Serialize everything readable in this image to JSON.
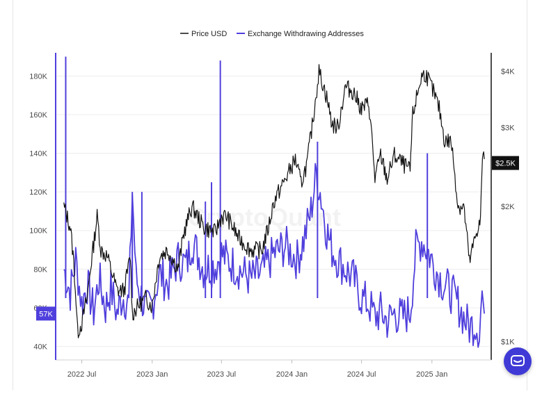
{
  "chart_data": {
    "type": "line",
    "legend": {
      "items": [
        {
          "label": "Price USD",
          "color": "#111111"
        },
        {
          "label": "Exchange Withdrawing Addresses",
          "color": "#4f3fdc"
        }
      ],
      "placement": "top-center"
    },
    "watermark": "CryptoQuant",
    "x_ticks": [
      "2022 Jul",
      "2023 Jan",
      "2023 Jul",
      "2024 Jan",
      "2024 Jul",
      "2025 Jan"
    ],
    "x_range": [
      "2022-05",
      "2025-05"
    ],
    "y_left": {
      "ticks": [
        "40K",
        "60K",
        "80K",
        "100K",
        "120K",
        "140K",
        "160K",
        "180K"
      ],
      "tick_values": [
        40000,
        60000,
        80000,
        100000,
        120000,
        140000,
        160000,
        180000
      ],
      "range": [
        33000,
        192000
      ],
      "current_label": "57K",
      "current_value": 57000
    },
    "y_right": {
      "scale": "log",
      "ticks": [
        "$1K",
        "$2K",
        "$3K",
        "$4K"
      ],
      "tick_values": [
        1000,
        2000,
        3000,
        4000
      ],
      "range": [
        910,
        4400
      ],
      "current_label": "$2.5K",
      "current_value": 2500
    },
    "grid": "horizontal",
    "series": [
      {
        "name": "Price USD",
        "axis": "right",
        "color": "#111111",
        "points": [
          [
            "2022-05-15",
            2000
          ],
          [
            "2022-06-01",
            1800
          ],
          [
            "2022-06-10",
            1500
          ],
          [
            "2022-06-20",
            1050
          ],
          [
            "2022-07-01",
            1100
          ],
          [
            "2022-07-15",
            1250
          ],
          [
            "2022-08-01",
            1650
          ],
          [
            "2022-08-10",
            1900
          ],
          [
            "2022-08-20",
            1600
          ],
          [
            "2022-09-05",
            1550
          ],
          [
            "2022-09-15",
            1450
          ],
          [
            "2022-10-01",
            1300
          ],
          [
            "2022-10-20",
            1300
          ],
          [
            "2022-11-05",
            1550
          ],
          [
            "2022-11-10",
            1150
          ],
          [
            "2022-11-25",
            1200
          ],
          [
            "2022-12-15",
            1250
          ],
          [
            "2023-01-01",
            1200
          ],
          [
            "2023-01-20",
            1550
          ],
          [
            "2023-02-10",
            1600
          ],
          [
            "2023-03-10",
            1450
          ],
          [
            "2023-03-25",
            1750
          ],
          [
            "2023-04-15",
            2000
          ],
          [
            "2023-05-15",
            1800
          ],
          [
            "2023-06-15",
            1750
          ],
          [
            "2023-07-01",
            1900
          ],
          [
            "2023-07-15",
            1900
          ],
          [
            "2023-08-15",
            1700
          ],
          [
            "2023-09-15",
            1600
          ],
          [
            "2023-10-15",
            1600
          ],
          [
            "2023-11-01",
            1800
          ],
          [
            "2023-11-15",
            2050
          ],
          [
            "2023-12-15",
            2300
          ],
          [
            "2024-01-10",
            2550
          ],
          [
            "2024-01-25",
            2250
          ],
          [
            "2024-02-10",
            2500
          ],
          [
            "2024-02-25",
            3100
          ],
          [
            "2024-03-12",
            4000
          ],
          [
            "2024-04-01",
            3500
          ],
          [
            "2024-04-15",
            3050
          ],
          [
            "2024-05-01",
            3000
          ],
          [
            "2024-05-20",
            3700
          ],
          [
            "2024-06-10",
            3600
          ],
          [
            "2024-07-01",
            3300
          ],
          [
            "2024-07-20",
            3400
          ],
          [
            "2024-08-05",
            2300
          ],
          [
            "2024-08-20",
            2600
          ],
          [
            "2024-09-06",
            2300
          ],
          [
            "2024-09-25",
            2600
          ],
          [
            "2024-10-15",
            2500
          ],
          [
            "2024-11-05",
            2400
          ],
          [
            "2024-11-12",
            3200
          ],
          [
            "2024-12-05",
            3900
          ],
          [
            "2024-12-16",
            3950
          ],
          [
            "2025-01-05",
            3600
          ],
          [
            "2025-01-20",
            3300
          ],
          [
            "2025-02-03",
            2800
          ],
          [
            "2025-02-20",
            2800
          ],
          [
            "2025-03-10",
            2000
          ],
          [
            "2025-03-25",
            2000
          ],
          [
            "2025-04-09",
            1500
          ],
          [
            "2025-04-20",
            1650
          ],
          [
            "2025-05-01",
            1800
          ],
          [
            "2025-05-08",
            1850
          ],
          [
            "2025-05-13",
            2600
          ],
          [
            "2025-05-18",
            2550
          ]
        ]
      },
      {
        "name": "Exchange Withdrawing Addresses",
        "axis": "left",
        "color": "#4f3fdc",
        "points": [
          [
            "2022-05-15",
            80000
          ],
          [
            "2022-06-01",
            68000
          ],
          [
            "2022-06-15",
            85000
          ],
          [
            "2022-07-01",
            62000
          ],
          [
            "2022-07-15",
            72000
          ],
          [
            "2022-08-01",
            58000
          ],
          [
            "2022-08-15",
            75000
          ],
          [
            "2022-09-01",
            60000
          ],
          [
            "2022-09-15",
            70000
          ],
          [
            "2022-10-01",
            57000
          ],
          [
            "2022-10-15",
            66000
          ],
          [
            "2022-11-01",
            62000
          ],
          [
            "2022-11-10",
            120000
          ],
          [
            "2022-11-20",
            75000
          ],
          [
            "2022-12-01",
            68000
          ],
          [
            "2022-12-15",
            58000
          ],
          [
            "2023-01-01",
            62000
          ],
          [
            "2023-01-20",
            78000
          ],
          [
            "2023-02-10",
            72000
          ],
          [
            "2023-03-10",
            85000
          ],
          [
            "2023-04-01",
            82000
          ],
          [
            "2023-04-15",
            95000
          ],
          [
            "2023-05-15",
            80000
          ],
          [
            "2023-06-15",
            82000
          ],
          [
            "2023-07-01",
            88000
          ],
          [
            "2023-07-15",
            85000
          ],
          [
            "2023-08-15",
            80000
          ],
          [
            "2023-09-15",
            75000
          ],
          [
            "2023-10-15",
            78000
          ],
          [
            "2023-11-15",
            88000
          ],
          [
            "2023-12-15",
            92000
          ],
          [
            "2024-01-15",
            85000
          ],
          [
            "2024-02-01",
            95000
          ],
          [
            "2024-02-20",
            110000
          ],
          [
            "2024-03-05",
            130000
          ],
          [
            "2024-03-15",
            120000
          ],
          [
            "2024-04-01",
            100000
          ],
          [
            "2024-04-15",
            90000
          ],
          [
            "2024-05-01",
            85000
          ],
          [
            "2024-05-20",
            80000
          ],
          [
            "2024-06-10",
            75000
          ],
          [
            "2024-07-01",
            65000
          ],
          [
            "2024-07-20",
            62000
          ],
          [
            "2024-08-05",
            55000
          ],
          [
            "2024-08-20",
            58000
          ],
          [
            "2024-09-06",
            53000
          ],
          [
            "2024-09-25",
            57000
          ],
          [
            "2024-10-15",
            55000
          ],
          [
            "2024-11-05",
            58000
          ],
          [
            "2024-11-20",
            90000
          ],
          [
            "2024-12-05",
            95000
          ],
          [
            "2024-12-20",
            90000
          ],
          [
            "2025-01-10",
            80000
          ],
          [
            "2025-02-01",
            72000
          ],
          [
            "2025-02-20",
            68000
          ],
          [
            "2025-03-10",
            62000
          ],
          [
            "2025-03-25",
            55000
          ],
          [
            "2025-04-09",
            50000
          ],
          [
            "2025-04-25",
            52000
          ],
          [
            "2025-05-05",
            48000
          ],
          [
            "2025-05-12",
            68000
          ],
          [
            "2025-05-18",
            57000
          ]
        ],
        "spikes": [
          [
            "2022-05-20",
            190000
          ],
          [
            "2022-11-10",
            120000
          ],
          [
            "2022-12-05",
            120000
          ],
          [
            "2023-05-20",
            115000
          ],
          [
            "2023-06-05",
            125000
          ],
          [
            "2023-06-28",
            188000
          ],
          [
            "2024-03-08",
            146000
          ],
          [
            "2024-12-20",
            140000
          ]
        ]
      }
    ]
  }
}
